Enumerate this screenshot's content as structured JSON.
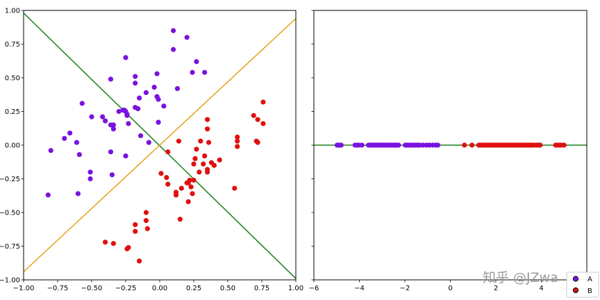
{
  "chart_data": [
    {
      "type": "scatter",
      "title": "",
      "xlabel": "",
      "ylabel": "",
      "xlim": [
        -1.0,
        1.0
      ],
      "ylim": [
        -1.0,
        1.0
      ],
      "x_ticks": [
        -1.0,
        -0.75,
        -0.5,
        -0.25,
        0.0,
        0.25,
        0.5,
        0.75,
        1.0
      ],
      "y_ticks": [
        -1.0,
        -0.75,
        -0.5,
        -0.25,
        0.0,
        0.25,
        0.5,
        0.75,
        1.0
      ],
      "x_tick_labels": [
        "−1.00",
        "−0.75",
        "−0.50",
        "−0.25",
        "0.00",
        "0.25",
        "0.50",
        "0.75",
        "1.00"
      ],
      "y_tick_labels": [
        "−1.00",
        "−0.75",
        "−0.50",
        "−0.25",
        "0.00",
        "0.25",
        "0.50",
        "0.75",
        "1.00"
      ],
      "grid": false,
      "series": [
        {
          "name": "A",
          "color": "#7a12e0",
          "points": [
            [
              -0.82,
              -0.37
            ],
            [
              -0.8,
              -0.04
            ],
            [
              -0.7,
              0.05
            ],
            [
              -0.66,
              0.09
            ],
            [
              -0.61,
              0.02
            ],
            [
              -0.59,
              -0.07
            ],
            [
              -0.57,
              0.31
            ],
            [
              -0.6,
              -0.36
            ],
            [
              -0.51,
              -0.2
            ],
            [
              -0.51,
              -0.25
            ],
            [
              -0.5,
              0.21
            ],
            [
              -0.42,
              0.21
            ],
            [
              -0.4,
              0.18
            ],
            [
              -0.36,
              0.15
            ],
            [
              -0.34,
              0.15
            ],
            [
              -0.34,
              0.12
            ],
            [
              -0.36,
              0.49
            ],
            [
              -0.36,
              -0.05
            ],
            [
              -0.35,
              -0.22
            ],
            [
              -0.3,
              0.25
            ],
            [
              -0.27,
              0.26
            ],
            [
              -0.26,
              0.26
            ],
            [
              -0.25,
              0.25
            ],
            [
              -0.24,
              0.22
            ],
            [
              -0.24,
              0.23
            ],
            [
              -0.25,
              0.65
            ],
            [
              -0.23,
              0.16
            ],
            [
              -0.25,
              -0.08
            ],
            [
              -0.18,
              0.51
            ],
            [
              -0.18,
              0.46
            ],
            [
              -0.18,
              0.28
            ],
            [
              -0.16,
              0.27
            ],
            [
              -0.15,
              0.35
            ],
            [
              -0.14,
              0.07
            ],
            [
              -0.1,
              0.39
            ],
            [
              -0.08,
              0.02
            ],
            [
              -0.04,
              0.43
            ],
            [
              -0.02,
              0.36
            ],
            [
              -0.01,
              0.34
            ],
            [
              -0.01,
              0.17
            ],
            [
              -0.02,
              0.53
            ],
            [
              0.03,
              0.29
            ],
            [
              0.1,
              0.85
            ],
            [
              0.1,
              0.71
            ],
            [
              0.13,
              0.42
            ],
            [
              0.2,
              0.8
            ],
            [
              0.24,
              0.54
            ],
            [
              0.27,
              0.62
            ],
            [
              0.33,
              0.54
            ]
          ]
        },
        {
          "name": "B",
          "color": "#e01010",
          "points": [
            [
              -0.4,
              -0.72
            ],
            [
              -0.34,
              -0.73
            ],
            [
              -0.24,
              -0.77
            ],
            [
              -0.23,
              -0.76
            ],
            [
              -0.18,
              -0.59
            ],
            [
              -0.18,
              -0.64
            ],
            [
              -0.15,
              -0.86
            ],
            [
              -0.1,
              -0.5
            ],
            [
              -0.1,
              -0.56
            ],
            [
              -0.09,
              -0.62
            ],
            [
              0.01,
              -0.21
            ],
            [
              0.05,
              -0.24
            ],
            [
              0.06,
              -0.29
            ],
            [
              0.06,
              -0.05
            ],
            [
              0.12,
              -0.35
            ],
            [
              0.12,
              -0.37
            ],
            [
              0.15,
              -0.55
            ],
            [
              0.16,
              -0.32
            ],
            [
              0.14,
              0.03
            ],
            [
              0.2,
              -0.28
            ],
            [
              0.21,
              -0.28
            ],
            [
              0.21,
              -0.42
            ],
            [
              0.22,
              -0.26
            ],
            [
              0.23,
              -0.31
            ],
            [
              0.24,
              -0.36
            ],
            [
              0.25,
              -0.26
            ],
            [
              0.25,
              -0.14
            ],
            [
              0.26,
              -0.1
            ],
            [
              0.27,
              -0.03
            ],
            [
              0.29,
              -0.2
            ],
            [
              0.3,
              0.03
            ],
            [
              0.32,
              -0.14
            ],
            [
              0.33,
              -0.08
            ],
            [
              0.35,
              0.12
            ],
            [
              0.35,
              0.19
            ],
            [
              0.35,
              -0.2
            ],
            [
              0.35,
              -0.18
            ],
            [
              0.36,
              0.02
            ],
            [
              0.38,
              -0.13
            ],
            [
              0.4,
              -0.15
            ],
            [
              0.44,
              -0.11
            ],
            [
              0.55,
              -0.32
            ],
            [
              0.57,
              0.06
            ],
            [
              0.57,
              0.03
            ],
            [
              0.57,
              -0.01
            ],
            [
              0.69,
              0.22
            ],
            [
              0.71,
              0.03
            ],
            [
              0.72,
              0.19
            ],
            [
              0.72,
              0.02
            ],
            [
              0.76,
              0.32
            ],
            [
              0.76,
              0.16
            ]
          ]
        }
      ],
      "lines": [
        {
          "color": "#1a7f1a",
          "from": [
            -1.0,
            0.98
          ],
          "to": [
            1.0,
            -0.99
          ]
        },
        {
          "color": "#e6a118",
          "from": [
            -1.0,
            -0.94
          ],
          "to": [
            1.0,
            0.94
          ]
        }
      ]
    },
    {
      "type": "scatter",
      "title": "",
      "xlabel": "",
      "ylabel": "",
      "xlim": [
        -6,
        6
      ],
      "ylim": [
        -1.0,
        1.0
      ],
      "x_ticks": [
        -6,
        -4,
        -2,
        0,
        2,
        4
      ],
      "x_tick_labels": [
        "−6",
        "−4",
        "−2",
        "0",
        "2",
        "4"
      ],
      "grid": false,
      "series": [
        {
          "name": "A",
          "color": "#7a12e0",
          "x": [
            -4.98,
            -4.92,
            -4.86,
            -4.8,
            -4.19,
            -4.1,
            -4.02,
            -3.89,
            -3.6,
            -3.52,
            -3.46,
            -3.39,
            -3.32,
            -3.26,
            -3.19,
            -3.12,
            -3.05,
            -2.98,
            -2.91,
            -2.84,
            -2.77,
            -2.7,
            -2.62,
            -2.55,
            -2.49,
            -2.42,
            -2.35,
            -2.28,
            -1.98,
            -1.9,
            -1.81,
            -1.73,
            -1.66,
            -1.58,
            -1.5,
            -1.42,
            -1.34,
            -1.2,
            -1.05,
            -0.92,
            -0.78,
            -0.65,
            -0.55
          ]
        },
        {
          "name": "B",
          "color": "#e01010",
          "x": [
            0.62,
            0.95,
            1.25,
            1.33,
            1.4,
            1.48,
            1.56,
            1.64,
            1.7,
            1.78,
            1.86,
            1.94,
            2.02,
            2.1,
            2.18,
            2.26,
            2.34,
            2.42,
            2.5,
            2.58,
            2.66,
            2.74,
            2.82,
            2.9,
            2.98,
            3.06,
            3.14,
            3.22,
            3.3,
            3.38,
            3.46,
            3.54,
            3.62,
            3.68,
            3.79,
            3.87,
            3.95,
            4.63,
            4.71,
            4.8,
            4.88,
            5.0
          ]
        }
      ],
      "lines": [
        {
          "color": "#1a7f1a",
          "from": [
            -6,
            0
          ],
          "to": [
            6,
            0
          ]
        }
      ],
      "legend": {
        "placement": "bottom-right",
        "entries": [
          "A",
          "B"
        ]
      }
    }
  ],
  "watermark": {
    "text": "知乎 @JZwa"
  }
}
